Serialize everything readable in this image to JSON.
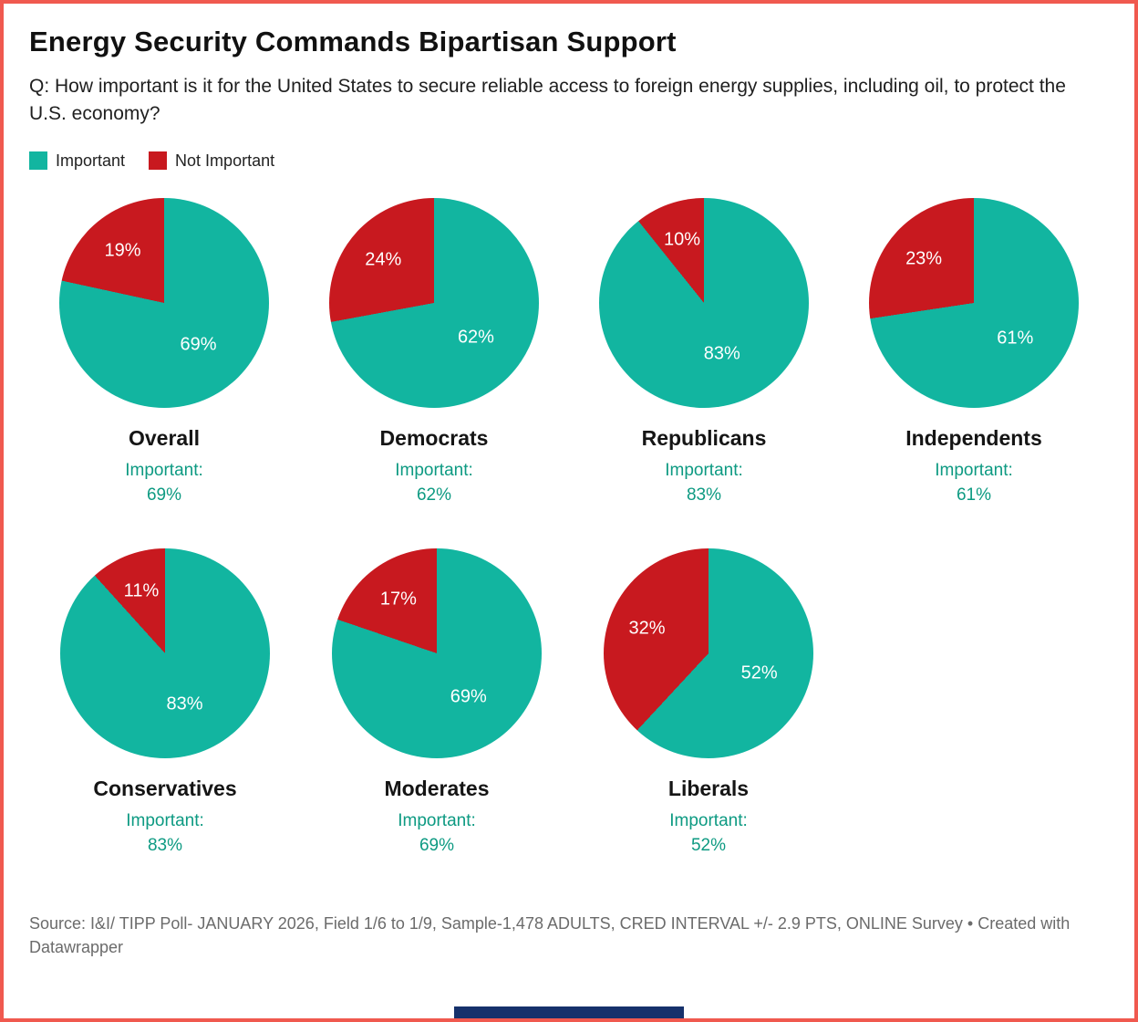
{
  "title": "Energy Security Commands Bipartisan Support",
  "subtitle": "Q: How important is it for the United States to secure reliable access to foreign energy supplies, including oil, to protect the U.S. economy?",
  "legend": [
    {
      "label": "Important",
      "color": "#12b5a0"
    },
    {
      "label": "Not Important",
      "color": "#c8191f"
    }
  ],
  "colors": {
    "important": "#12b5a0",
    "not_important": "#c8191f",
    "accent_text": "#0d9a82",
    "border": "#f0594f",
    "brand_bar": "#16316b"
  },
  "chart_data": {
    "type": "pie",
    "series_labels": [
      "Important",
      "Not Important"
    ],
    "caption_prefix": "Important:",
    "pies": [
      {
        "name": "Overall",
        "important": 69,
        "not_important": 19
      },
      {
        "name": "Democrats",
        "important": 62,
        "not_important": 24
      },
      {
        "name": "Republicans",
        "important": 83,
        "not_important": 10
      },
      {
        "name": "Independents",
        "important": 61,
        "not_important": 23
      },
      {
        "name": "Conservatives",
        "important": 83,
        "not_important": 11
      },
      {
        "name": "Moderates",
        "important": 69,
        "not_important": 17
      },
      {
        "name": "Liberals",
        "important": 52,
        "not_important": 32
      }
    ]
  },
  "footer": "Source: I&I/ TIPP Poll- JANUARY 2026, Field 1/6 to 1/9, Sample-1,478 ADULTS, CRED INTERVAL +/- 2.9 PTS, ONLINE Survey • Created with Datawrapper"
}
